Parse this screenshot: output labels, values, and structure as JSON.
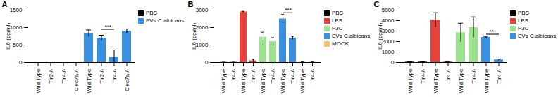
{
  "chart_data": [
    {
      "type": "bar",
      "title": "A",
      "y_label": "IL6 (pg/ml)",
      "categories": [
        "Wild Type",
        "Tlr2-/-",
        "Tlr4-/-",
        "Clec7a-/-",
        "Wild Type",
        "Tlr2-/-",
        "Tlr4-/-",
        "Clec7a-/-"
      ],
      "series": [
        {
          "name": "PBS",
          "color": "#000000",
          "values": [
            0,
            0,
            0,
            0,
            null,
            null,
            null,
            null
          ],
          "errors": [
            0,
            0,
            0,
            0,
            null,
            null,
            null,
            null
          ]
        },
        {
          "name": "EVs C.albicans",
          "color": "#3b8fe0",
          "values": [
            null,
            null,
            null,
            null,
            830,
            700,
            150,
            890
          ],
          "errors": [
            null,
            null,
            null,
            null,
            100,
            80,
            210,
            70
          ]
        }
      ],
      "ylim": [
        0,
        1500
      ],
      "yticks": [
        0,
        500,
        1000,
        1500
      ],
      "legend": "right",
      "annotations": [
        {
          "text": "***",
          "x1": 5,
          "x2": 6,
          "y": 950
        }
      ]
    },
    {
      "type": "bar",
      "title": "B",
      "y_label": "IL6 (pg/ml)",
      "categories": [
        "Wild Type",
        "Tlr4-/-",
        "Wild Type",
        "Tlr4-/-",
        "Wild Type",
        "Tlr4-/-",
        "Wild Type",
        "Tlr4-/-",
        "Wild Type",
        "Tlr4-/-"
      ],
      "series": [
        {
          "name": "PBS",
          "color": "#000000",
          "values": [
            10,
            10,
            null,
            null,
            null,
            null,
            null,
            null,
            null,
            null
          ],
          "errors": [
            5,
            5,
            null,
            null,
            null,
            null,
            null,
            null,
            null,
            null
          ]
        },
        {
          "name": "LPS",
          "color": "#e8413a",
          "values": [
            null,
            null,
            2900,
            100,
            null,
            null,
            null,
            null,
            null,
            null
          ],
          "errors": [
            null,
            null,
            30,
            80,
            null,
            null,
            null,
            null,
            null,
            null
          ]
        },
        {
          "name": "P3C",
          "color": "#9de38f",
          "values": [
            null,
            null,
            null,
            null,
            1450,
            1200,
            null,
            null,
            null,
            null
          ],
          "errors": [
            null,
            null,
            null,
            null,
            280,
            220,
            null,
            null,
            null,
            null
          ]
        },
        {
          "name": "EVs C.albicans",
          "color": "#3b8fe0",
          "values": [
            null,
            null,
            null,
            null,
            null,
            null,
            2500,
            1400,
            null,
            null
          ],
          "errors": [
            null,
            null,
            null,
            null,
            null,
            null,
            250,
            100,
            null,
            null
          ]
        },
        {
          "name": "MOCK",
          "color": "#f2c27a",
          "values": [
            null,
            null,
            null,
            null,
            null,
            null,
            null,
            null,
            20,
            20
          ],
          "errors": [
            null,
            null,
            null,
            null,
            null,
            null,
            null,
            null,
            10,
            10
          ]
        }
      ],
      "ylim": [
        0,
        3000
      ],
      "yticks": [
        0,
        1000,
        2000,
        3000
      ],
      "legend": "right",
      "annotations": [
        {
          "text": "***",
          "x1": 6,
          "x2": 7,
          "y": 2850
        }
      ]
    },
    {
      "type": "bar",
      "title": "C",
      "y_label": "IL6 (pg/ml)",
      "categories": [
        "Wild Type",
        "Tlr4-/-",
        "Wild Type",
        "Tlr4-/-",
        "Wild Type",
        "Tlr4-/-",
        "Wild Type",
        "Tlr4-/-"
      ],
      "series": [
        {
          "name": "PBS",
          "color": "#000000",
          "values": [
            40,
            40,
            null,
            null,
            null,
            null,
            null,
            null
          ],
          "errors": [
            20,
            20,
            null,
            null,
            null,
            null,
            null,
            null
          ]
        },
        {
          "name": "LPS",
          "color": "#e8413a",
          "values": [
            null,
            null,
            4050,
            50,
            null,
            null,
            null,
            null
          ],
          "errors": [
            null,
            null,
            700,
            30,
            null,
            null,
            null,
            null
          ]
        },
        {
          "name": "P3C",
          "color": "#9de38f",
          "values": [
            null,
            null,
            null,
            null,
            2850,
            3350,
            null,
            null
          ],
          "errors": [
            null,
            null,
            null,
            null,
            900,
            1000,
            null,
            null
          ]
        },
        {
          "name": "EVs C.albicans",
          "color": "#3b8fe0",
          "values": [
            null,
            null,
            null,
            null,
            null,
            null,
            2400,
            250
          ],
          "errors": [
            null,
            null,
            null,
            null,
            null,
            null,
            100,
            80
          ]
        }
      ],
      "ylim": [
        0,
        5000
      ],
      "yticks": [
        0,
        1000,
        2000,
        3000,
        4000,
        5000
      ],
      "legend": "right",
      "annotations": [
        {
          "text": "***",
          "x1": 6,
          "x2": 7,
          "y": 2700
        }
      ]
    }
  ]
}
